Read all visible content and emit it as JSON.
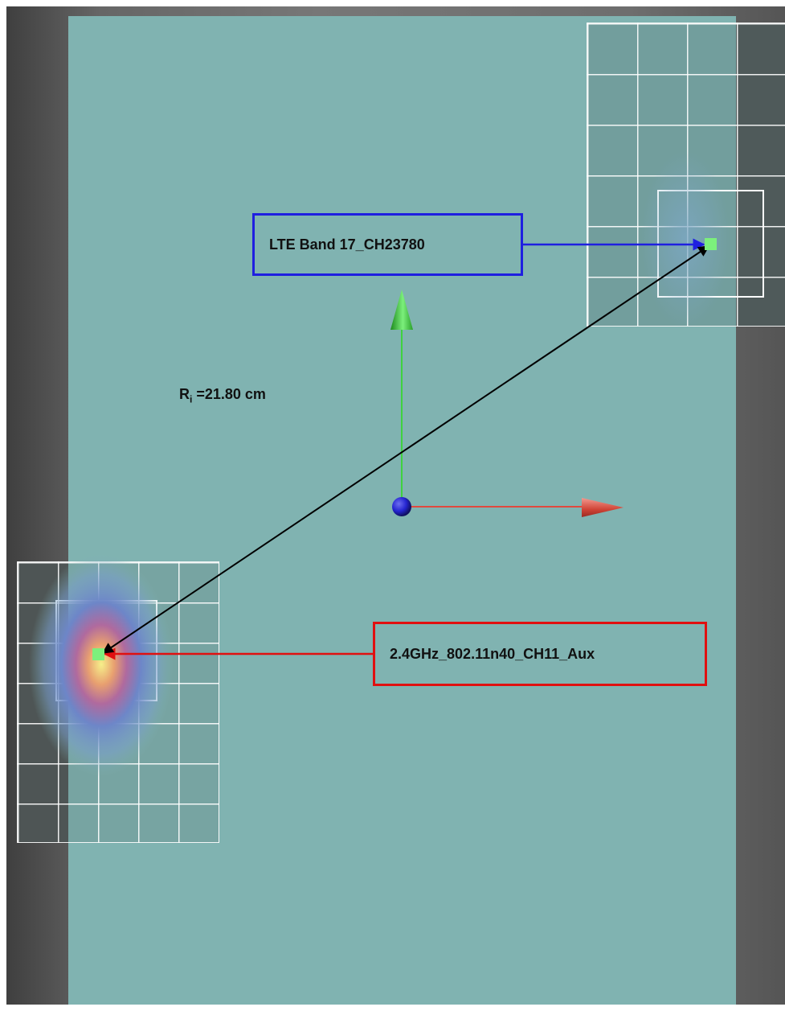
{
  "labels": {
    "lte": "LTE Band 17_CH23780",
    "wifi": "2.4GHz_802.11n40_CH11_Aux",
    "distance_symbol": "R",
    "distance_subscript": "i",
    "distance_value": " =21.80 cm"
  },
  "colors": {
    "lte_box_border": "#1f1fe0",
    "wifi_box_border": "#e01010",
    "distance_arrow": "#000000",
    "phantom": "#80b3b1",
    "y_axis": "#3fd13f",
    "x_axis": "#e0493f",
    "origin": "#2424d0",
    "hotspot_marker": "#7cf07c"
  },
  "icons": {
    "axis_origin": "blue-sphere",
    "y_axis_head": "green-cone",
    "x_axis_head": "red-cone"
  }
}
